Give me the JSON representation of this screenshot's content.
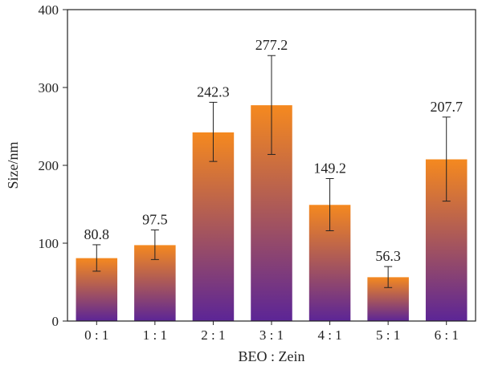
{
  "chart_data": {
    "type": "bar",
    "xlabel": "BEO : Zein",
    "ylabel": "Size/nm",
    "ylim": [
      0,
      400
    ],
    "yticks": [
      0,
      100,
      200,
      300,
      400
    ],
    "grid": false,
    "categories": [
      "0 : 1",
      "1 : 1",
      "2 : 1",
      "3 : 1",
      "4 : 1",
      "5 : 1",
      "6 : 1"
    ],
    "values": [
      80.8,
      97.5,
      242.3,
      277.2,
      149.2,
      56.3,
      207.7
    ],
    "data_labels": [
      "80.8",
      "97.5",
      "242.3",
      "277.2",
      "149.2",
      "56.3",
      "207.7"
    ],
    "error_low": [
      64,
      79,
      205,
      214,
      116,
      43,
      154
    ],
    "error_high": [
      98,
      117,
      281,
      341,
      183,
      70,
      262
    ],
    "colors": {
      "bar_top": "#f5891f",
      "bar_bottom": "#5c2596",
      "error": "#222222",
      "axis": "#222222"
    }
  }
}
